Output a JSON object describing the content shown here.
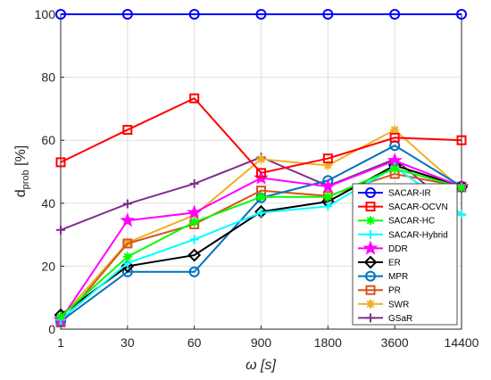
{
  "chart_data": {
    "type": "line",
    "categories": [
      "1",
      "30",
      "60",
      "900",
      "1800",
      "3600",
      "14400"
    ],
    "xlabel": "ω [s]",
    "ylabel_main": "d",
    "ylabel_sub": "prob",
    "ylabel_unit": " [%]",
    "ylim": [
      0,
      100
    ],
    "yticks": [
      "0",
      "20",
      "40",
      "60",
      "80",
      "100"
    ],
    "grid": true,
    "legend_position": "bottom-right",
    "series": [
      {
        "name": "SACAR-IR",
        "color": "#0000ff",
        "marker": "circle",
        "values": [
          100,
          100,
          100,
          100,
          100,
          100,
          100
        ]
      },
      {
        "name": "SACAR-OCVN",
        "color": "#ff0000",
        "marker": "square",
        "values": [
          53,
          63.3,
          73.3,
          49.6,
          54.2,
          60.8,
          60
        ]
      },
      {
        "name": "SACAR-HC",
        "color": "#00ff00",
        "marker": "asterisk",
        "values": [
          4,
          23,
          34,
          42,
          42,
          51,
          45
        ]
      },
      {
        "name": "SACAR-Hybrid",
        "color": "#00ffff",
        "marker": "plus",
        "values": [
          3,
          21,
          28.5,
          37,
          39,
          51.5,
          36.5
        ]
      },
      {
        "name": "DDR",
        "color": "#ff00ff",
        "marker": "pentagram",
        "values": [
          3,
          34.5,
          37,
          48,
          45.3,
          53.5,
          45.3
        ]
      },
      {
        "name": "ER",
        "color": "#000000",
        "marker": "diamond",
        "values": [
          4.5,
          20,
          23.5,
          37.3,
          40.5,
          52,
          45.3
        ]
      },
      {
        "name": "MPR",
        "color": "#0072bd",
        "marker": "circle",
        "values": [
          2.5,
          18.2,
          18.2,
          41.7,
          47.2,
          58.3,
          45.3
        ]
      },
      {
        "name": "PR",
        "color": "#d95319",
        "marker": "square",
        "values": [
          2.1,
          27.2,
          33.3,
          44,
          42.3,
          49.3,
          45.3
        ]
      },
      {
        "name": "SWR",
        "color": "#edb120",
        "marker": "asterisk",
        "values": [
          3.5,
          27.5,
          36.2,
          54,
          52,
          63.3,
          44.5
        ]
      },
      {
        "name": "GSaR",
        "color": "#7e2f8e",
        "marker": "plus",
        "values": [
          31.5,
          39.8,
          46.2,
          54.6,
          45.5,
          54,
          36.4
        ]
      }
    ]
  }
}
